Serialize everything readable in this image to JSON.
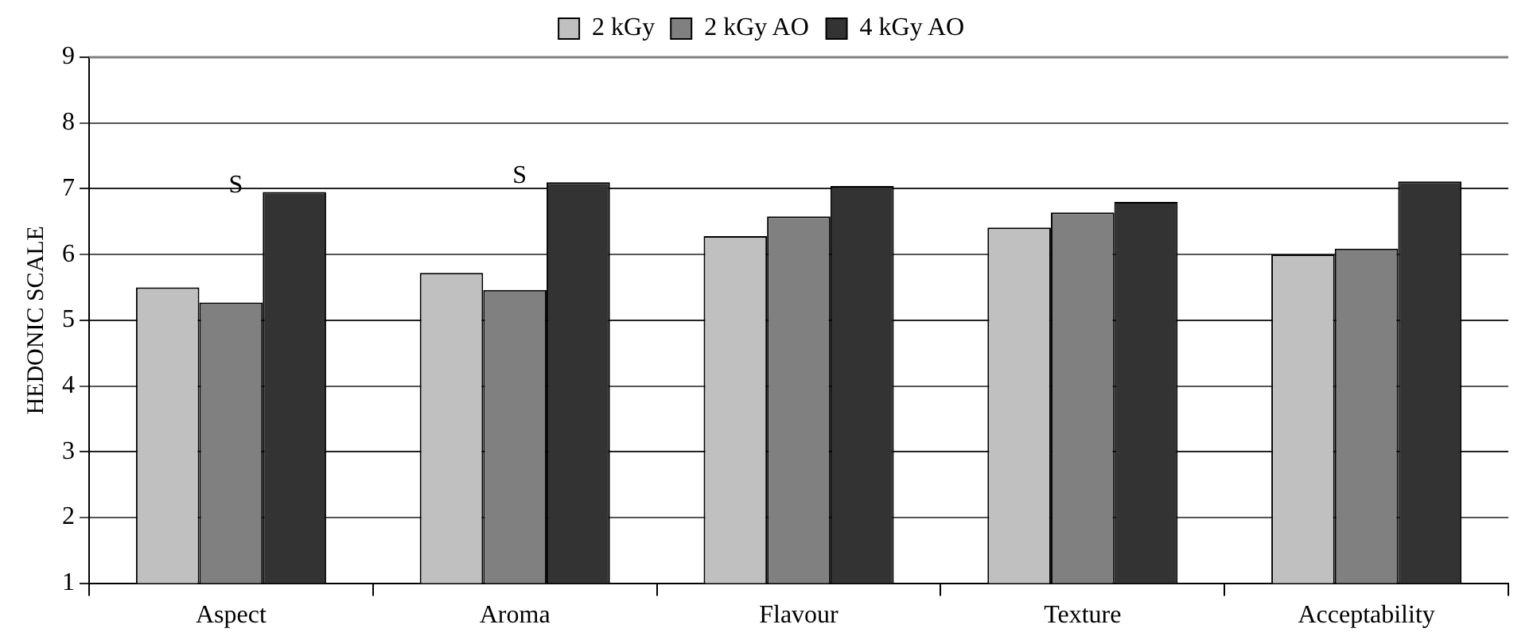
{
  "chart_data": {
    "type": "bar",
    "ylabel": "HEDONIC SCALE",
    "categories": [
      "Aspect",
      "Aroma",
      "Flavour",
      "Texture",
      "Acceptability"
    ],
    "series": [
      {
        "name": "2 kGy",
        "color": "#c0c0c0",
        "values": [
          5.5,
          5.72,
          6.28,
          6.41,
          6.0
        ]
      },
      {
        "name": "2 kGy AO",
        "color": "#808080",
        "values": [
          5.27,
          5.46,
          6.58,
          6.64,
          6.09
        ]
      },
      {
        "name": "4 kGy AO",
        "color": "#333333",
        "values": [
          6.95,
          7.1,
          7.04,
          6.8,
          7.11
        ]
      }
    ],
    "ylim": [
      1,
      9
    ],
    "yticks": [
      1,
      2,
      3,
      4,
      5,
      6,
      7,
      8,
      9
    ],
    "grid": "y",
    "legend": "top",
    "annotations": [
      "S",
      "S"
    ]
  }
}
